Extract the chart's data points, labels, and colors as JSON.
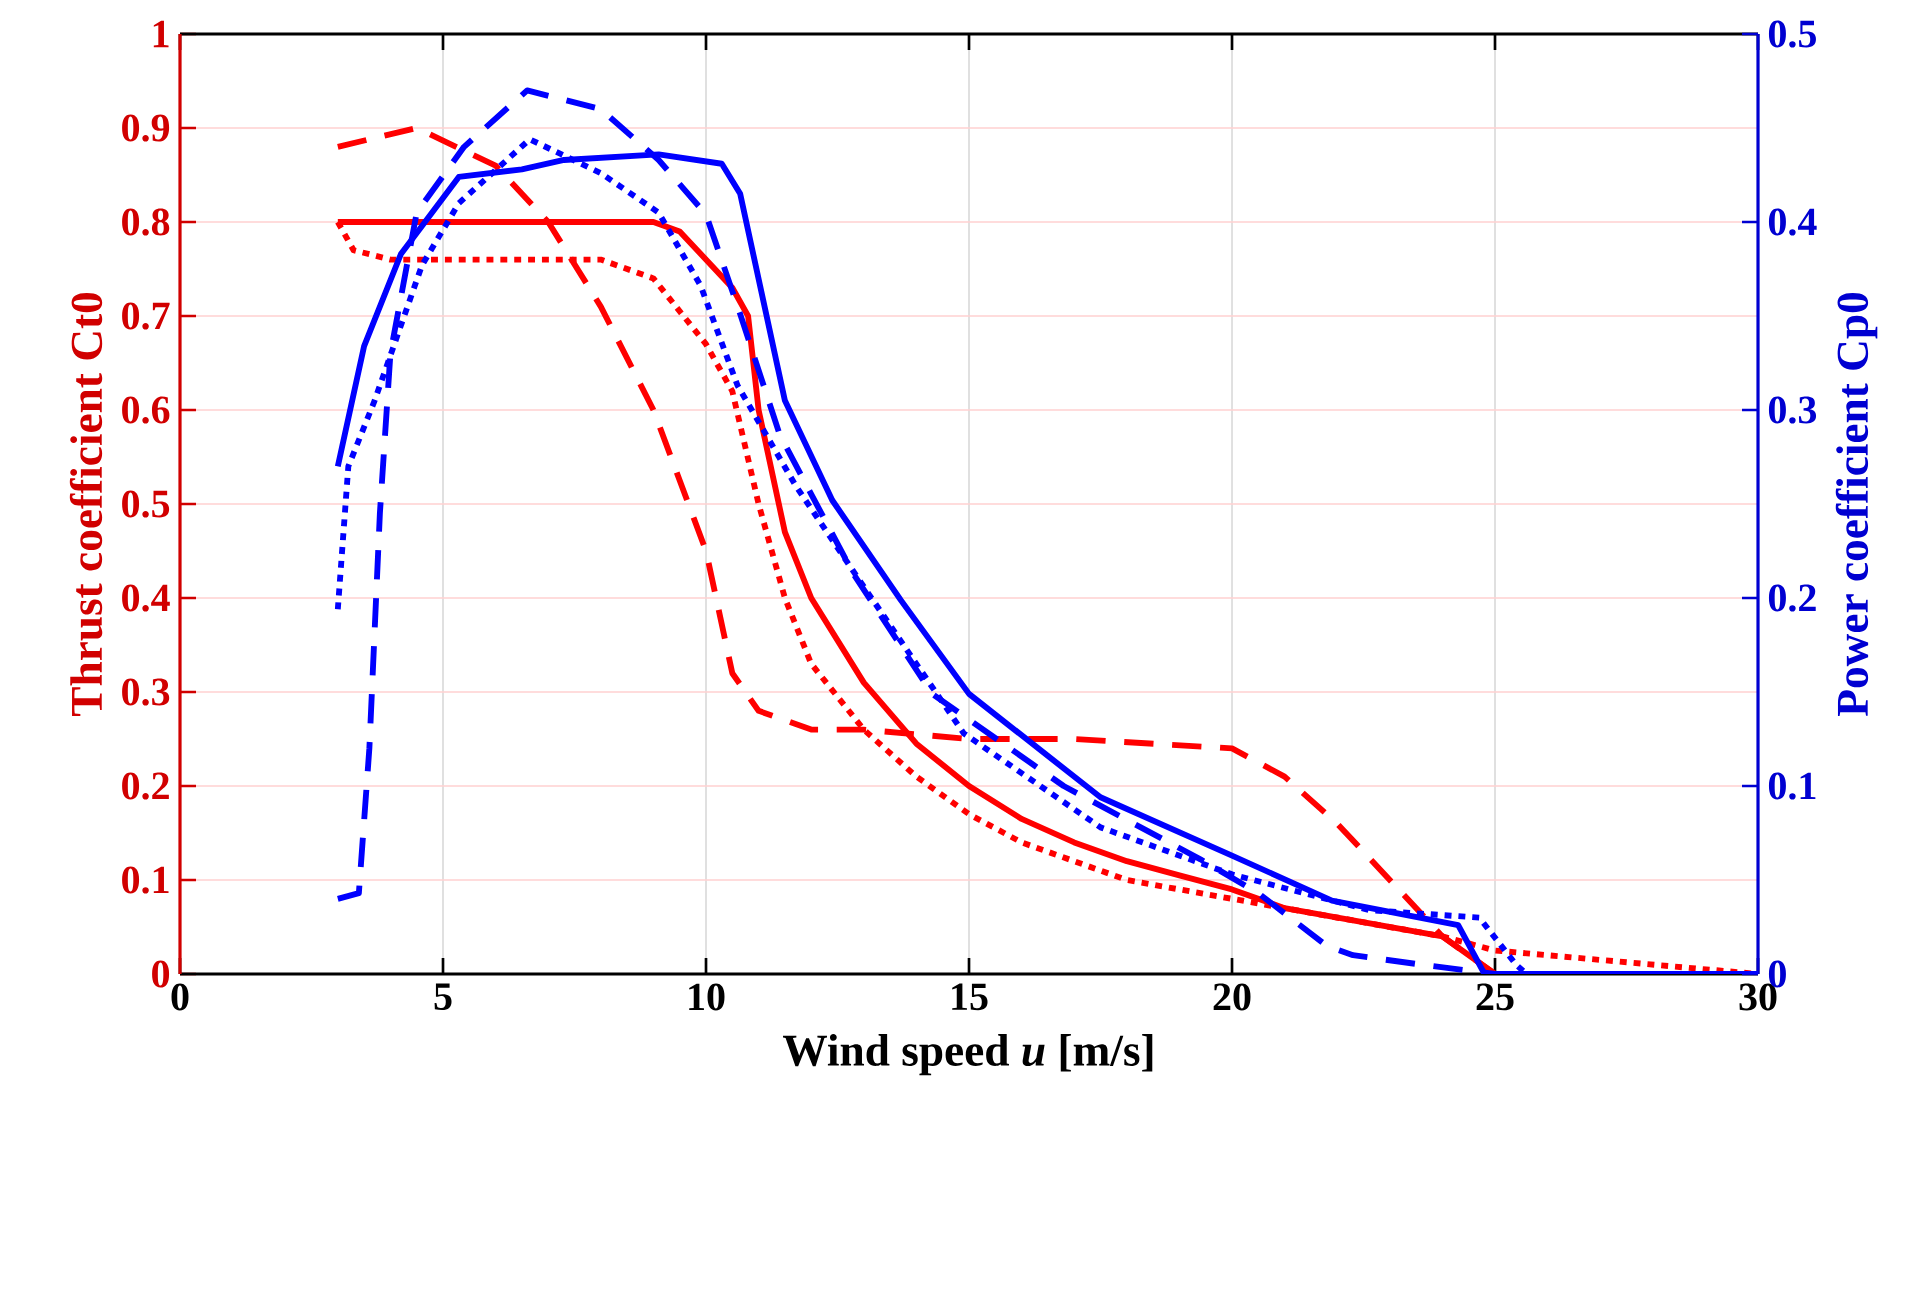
{
  "chart_data": {
    "type": "line",
    "xlabel": "Wind speed *u* [m/s]",
    "ylabel": "Thrust coefficient Ct0",
    "y2label": "Power coefficient Cp0",
    "xlim": [
      0,
      30
    ],
    "xticks": [
      0,
      5,
      10,
      15,
      20,
      25,
      30
    ],
    "ylim": [
      0,
      1
    ],
    "yticks": [
      0,
      0.1,
      0.2,
      0.3,
      0.4,
      0.5,
      0.6,
      0.7,
      0.8,
      0.9,
      1
    ],
    "y2lim": [
      0,
      0.5
    ],
    "y2ticks": [
      0,
      0.1,
      0.2,
      0.3,
      0.4,
      0.5
    ],
    "grid": true,
    "series": [
      {
        "color": "#ff0000",
        "line_style": "solid",
        "axis": "y",
        "x": [
          3,
          9,
          9.5,
          10.5,
          10.8,
          11,
          11.5,
          12,
          13,
          14,
          15,
          16,
          17,
          18,
          19,
          20,
          21,
          22,
          23,
          24,
          25
        ],
        "values": [
          0.8,
          0.8,
          0.79,
          0.73,
          0.7,
          0.6,
          0.47,
          0.4,
          0.31,
          0.245,
          0.2,
          0.165,
          0.14,
          0.12,
          0.105,
          0.09,
          0.07,
          0.06,
          0.05,
          0.04,
          0
        ]
      },
      {
        "color": "#ff0000",
        "line_style": "dotted",
        "axis": "y",
        "x": [
          3,
          3.3,
          4,
          8,
          9,
          10,
          10.5,
          11,
          11.5,
          12,
          13,
          14,
          15,
          16,
          17,
          18,
          19,
          20,
          21,
          22,
          24,
          25,
          27,
          30
        ],
        "values": [
          0.8,
          0.77,
          0.76,
          0.76,
          0.74,
          0.67,
          0.62,
          0.5,
          0.4,
          0.33,
          0.26,
          0.21,
          0.17,
          0.14,
          0.12,
          0.1,
          0.09,
          0.08,
          0.07,
          0.06,
          0.04,
          0.025,
          0.015,
          0
        ]
      },
      {
        "color": "#ff0000",
        "line_style": "dashed",
        "axis": "y",
        "x": [
          3,
          4.5,
          6,
          7,
          8,
          9,
          10,
          10.5,
          11,
          12,
          13,
          15,
          17,
          20,
          21,
          22,
          23,
          24,
          25
        ],
        "values": [
          0.88,
          0.9,
          0.86,
          0.8,
          0.71,
          0.6,
          0.45,
          0.32,
          0.28,
          0.26,
          0.26,
          0.25,
          0.25,
          0.24,
          0.21,
          0.16,
          0.1,
          0.04,
          0
        ]
      },
      {
        "color": "#0000ff",
        "line_style": "solid",
        "axis": "y2",
        "x": [
          3,
          3.5,
          4.2,
          5.3,
          6.5,
          7.3,
          9.1,
          10.3,
          10.65,
          11.5,
          12.4,
          13.7,
          15,
          17.5,
          20,
          21.9,
          24.3,
          24.8,
          30
        ],
        "values": [
          0.27,
          0.334,
          0.383,
          0.424,
          0.428,
          0.433,
          0.436,
          0.431,
          0.415,
          0.305,
          0.252,
          0.199,
          0.149,
          0.094,
          0.063,
          0.039,
          0.026,
          0,
          0
        ]
      },
      {
        "color": "#0000ff",
        "line_style": "dotted",
        "axis": "y2",
        "x": [
          3,
          3.2,
          3.7,
          4.6,
          5.3,
          6.65,
          8,
          9.1,
          9.9,
          10.6,
          11.7,
          13,
          14.9,
          17.5,
          20,
          22.6,
          24.7,
          25.4,
          25.6
        ],
        "values": [
          0.194,
          0.27,
          0.305,
          0.377,
          0.41,
          0.444,
          0.426,
          0.405,
          0.366,
          0.313,
          0.26,
          0.206,
          0.128,
          0.078,
          0.053,
          0.034,
          0.03,
          0.005,
          0
        ]
      },
      {
        "color": "#0000ff",
        "line_style": "dashed",
        "axis": "y2",
        "x": [
          3,
          3.4,
          3.6,
          3.8,
          4,
          4.5,
          5.4,
          6.6,
          8,
          9.1,
          10,
          10.65,
          11.4,
          12.8,
          14.3,
          16.8,
          19.4,
          20.5,
          21.8,
          22.3,
          23.6,
          25
        ],
        "values": [
          0.04,
          0.043,
          0.12,
          0.245,
          0.33,
          0.405,
          0.44,
          0.47,
          0.46,
          0.433,
          0.404,
          0.351,
          0.287,
          0.213,
          0.149,
          0.1,
          0.061,
          0.043,
          0.015,
          0.01,
          0.005,
          0
        ]
      }
    ]
  }
}
